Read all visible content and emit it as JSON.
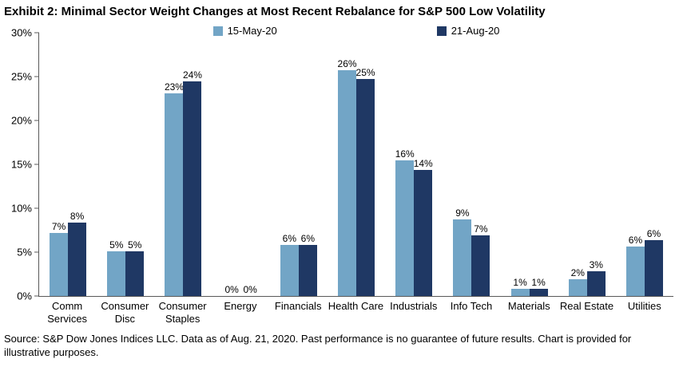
{
  "title": "Exhibit 2: Minimal Sector Weight Changes at Most Recent Rebalance for S&P 500 Low Volatility",
  "source_note": "Source: S&P Dow Jones Indices LLC. Data as of Aug. 21, 2020. Past performance is no guarantee of future results. Chart is provided for illustrative purposes.",
  "colors": {
    "series_may": "#72A5C6",
    "series_aug": "#1F3864",
    "axis": "#595959",
    "text": "#000000",
    "background": "#FFFFFF"
  },
  "chart_data": {
    "type": "bar",
    "title": "Exhibit 2: Minimal Sector Weight Changes at Most Recent Rebalance for S&P 500 Low Volatility",
    "categories": [
      "Comm Services",
      "Consumer Disc",
      "Consumer Staples",
      "Energy",
      "Financials",
      "Health Care",
      "Industrials",
      "Info Tech",
      "Materials",
      "Real Estate",
      "Utilities"
    ],
    "series": [
      {
        "name": "15-May-20",
        "color": "#72A5C6",
        "values": [
          7.2,
          5.1,
          23.1,
          0,
          5.8,
          25.7,
          15.5,
          8.7,
          0.8,
          1.9,
          5.6
        ],
        "labels": [
          "7%",
          "5%",
          "23%",
          "0%",
          "6%",
          "26%",
          "16%",
          "9%",
          "1%",
          "2%",
          "6%"
        ]
      },
      {
        "name": "21-Aug-20",
        "color": "#1F3864",
        "values": [
          8.4,
          5.1,
          24.5,
          0,
          5.8,
          24.7,
          14.4,
          6.9,
          0.8,
          2.8,
          6.4
        ],
        "labels": [
          "8%",
          "5%",
          "24%",
          "0%",
          "6%",
          "25%",
          "14%",
          "7%",
          "1%",
          "3%",
          "6%"
        ]
      }
    ],
    "xlabel": "",
    "ylabel": "",
    "ylim": [
      0,
      30
    ],
    "yticks": [
      "0%",
      "5%",
      "10%",
      "15%",
      "20%",
      "25%",
      "30%"
    ],
    "grid": false,
    "legend_position": "top-center"
  }
}
